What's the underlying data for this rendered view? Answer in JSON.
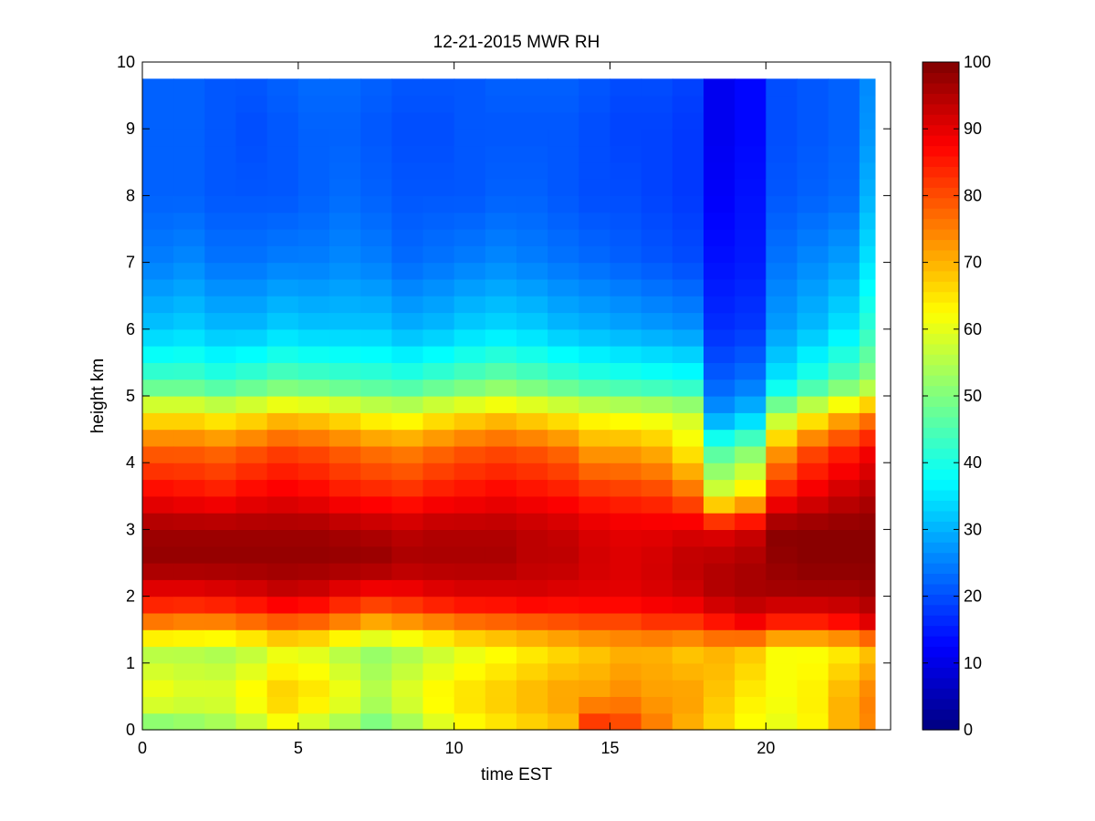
{
  "chart_data": {
    "type": "heatmap",
    "title": "12-21-2015 MWR RH",
    "xlabel": "time EST",
    "ylabel": "height km",
    "xlim": [
      0,
      24
    ],
    "ylim": [
      0,
      10
    ],
    "x_ticks": [
      0,
      5,
      10,
      15,
      20
    ],
    "y_ticks": [
      0,
      1,
      2,
      3,
      4,
      5,
      6,
      7,
      8,
      9,
      10
    ],
    "colorbar": {
      "colormap": "jet",
      "min": 0,
      "max": 100,
      "ticks": [
        0,
        10,
        20,
        30,
        40,
        50,
        60,
        70,
        80,
        90,
        100
      ]
    },
    "x_edges": [
      0,
      1,
      2,
      3,
      4,
      5,
      6,
      7,
      8,
      9,
      10,
      11,
      12,
      13,
      14,
      15,
      16,
      17,
      18,
      19,
      20,
      21,
      22,
      23,
      23.5
    ],
    "profile_heights_km": [
      0,
      0.5,
      1.2,
      1.6,
      2.0,
      2.5,
      3.0,
      3.5,
      4.2,
      4.7,
      5.2,
      6.0,
      7.0,
      8.0,
      9.0,
      9.75
    ],
    "top_height_km": 9.75,
    "profiles": [
      {
        "t": 0,
        "rh": [
          48,
          62,
          55,
          75,
          88,
          98,
          97,
          88,
          78,
          65,
          45,
          32,
          25,
          22,
          22,
          22
        ]
      },
      {
        "t": 1,
        "rh": [
          50,
          60,
          55,
          74,
          88,
          98,
          97,
          87,
          78,
          65,
          45,
          33,
          26,
          22,
          22,
          22
        ]
      },
      {
        "t": 2,
        "rh": [
          52,
          60,
          54,
          74,
          89,
          98,
          97,
          86,
          77,
          63,
          43,
          31,
          24,
          21,
          21,
          21
        ]
      },
      {
        "t": 3,
        "rh": [
          55,
          64,
          56,
          76,
          90,
          98,
          97,
          88,
          79,
          65,
          45,
          31,
          24,
          21,
          20,
          21
        ]
      },
      {
        "t": 4,
        "rh": [
          60,
          68,
          60,
          78,
          92,
          98,
          97,
          89,
          81,
          68,
          47,
          33,
          25,
          21,
          21,
          22
        ]
      },
      {
        "t": 5,
        "rh": [
          56,
          66,
          59,
          77,
          91,
          98,
          97,
          88,
          80,
          67,
          46,
          32,
          25,
          22,
          22,
          23
        ]
      },
      {
        "t": 6,
        "rh": [
          52,
          62,
          55,
          74,
          88,
          98,
          96,
          86,
          78,
          65,
          45,
          32,
          26,
          23,
          22,
          23
        ]
      },
      {
        "t": 7,
        "rh": [
          48,
          56,
          52,
          70,
          86,
          98,
          95,
          85,
          76,
          62,
          44,
          32,
          25,
          22,
          21,
          22
        ]
      },
      {
        "t": 8,
        "rh": [
          52,
          60,
          54,
          72,
          87,
          96,
          94,
          84,
          75,
          61,
          43,
          30,
          23,
          21,
          20,
          21
        ]
      },
      {
        "t": 9,
        "rh": [
          58,
          64,
          57,
          74,
          89,
          96,
          95,
          86,
          77,
          64,
          45,
          31,
          24,
          21,
          20,
          21
        ]
      },
      {
        "t": 10,
        "rh": [
          62,
          66,
          60,
          76,
          90,
          96,
          95,
          87,
          79,
          66,
          47,
          33,
          25,
          21,
          21,
          21
        ]
      },
      {
        "t": 11,
        "rh": [
          64,
          68,
          62,
          77,
          90,
          96,
          95,
          88,
          80,
          68,
          49,
          34,
          26,
          22,
          21,
          22
        ]
      },
      {
        "t": 12,
        "rh": [
          66,
          70,
          64,
          78,
          91,
          94,
          94,
          87,
          79,
          66,
          47,
          33,
          25,
          22,
          21,
          22
        ]
      },
      {
        "t": 13,
        "rh": [
          68,
          72,
          66,
          79,
          90,
          94,
          93,
          86,
          77,
          64,
          45,
          31,
          24,
          21,
          21,
          22
        ]
      },
      {
        "t": 14,
        "rh": [
          85,
          72,
          68,
          80,
          90,
          92,
          91,
          84,
          72,
          62,
          43,
          30,
          23,
          20,
          20,
          21
        ]
      },
      {
        "t": 15,
        "rh": [
          82,
          74,
          70,
          80,
          90,
          91,
          90,
          83,
          72,
          61,
          42,
          29,
          22,
          20,
          19,
          20
        ]
      },
      {
        "t": 16,
        "rh": [
          76,
          72,
          70,
          82,
          91,
          92,
          90,
          82,
          70,
          60,
          41,
          28,
          21,
          19,
          19,
          20
        ]
      },
      {
        "t": 17,
        "rh": [
          70,
          72,
          68,
          82,
          92,
          94,
          91,
          78,
          64,
          58,
          40,
          27,
          20,
          18,
          18,
          19
        ]
      },
      {
        "t": 18,
        "rh": [
          66,
          68,
          70,
          85,
          95,
          95,
          90,
          60,
          45,
          28,
          22,
          17,
          14,
          12,
          11,
          11
        ]
      },
      {
        "t": 19,
        "rh": [
          62,
          64,
          68,
          88,
          96,
          96,
          92,
          66,
          50,
          32,
          24,
          18,
          15,
          14,
          13,
          13
        ]
      },
      {
        "t": 20,
        "rh": [
          60,
          62,
          62,
          84,
          96,
          98,
          99,
          86,
          72,
          55,
          36,
          28,
          24,
          21,
          20,
          20
        ]
      },
      {
        "t": 21,
        "rh": [
          63,
          64,
          62,
          84,
          96,
          99,
          99,
          90,
          80,
          63,
          42,
          31,
          26,
          22,
          21,
          21
        ]
      },
      {
        "t": 22,
        "rh": [
          70,
          70,
          64,
          86,
          96,
          99,
          99,
          93,
          84,
          70,
          47,
          35,
          28,
          23,
          22,
          22
        ]
      },
      {
        "t": 23,
        "rh": [
          74,
          75,
          68,
          90,
          97,
          99,
          99,
          95,
          88,
          75,
          52,
          42,
          35,
          30,
          27,
          26
        ]
      }
    ],
    "grid": false,
    "legend": "none"
  }
}
